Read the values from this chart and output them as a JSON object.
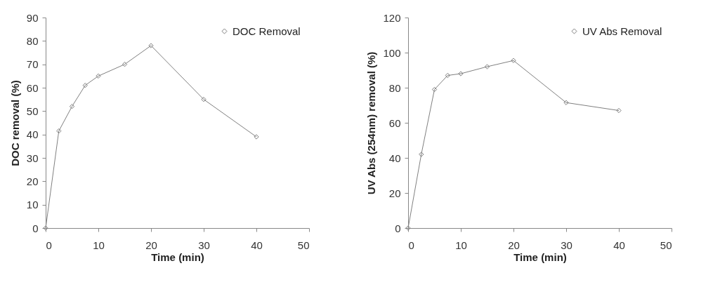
{
  "chart_data": [
    {
      "type": "line",
      "xlabel": "Time (min)",
      "ylabel": "DOC removal (%)",
      "x": [
        0,
        2.5,
        5,
        7.5,
        10,
        15,
        20,
        30,
        40
      ],
      "series": [
        {
          "name": "DOC Removal",
          "color": "#808080",
          "values": [
            0,
            41.5,
            52,
            61,
            65,
            70,
            78,
            55,
            39
          ]
        }
      ],
      "xlim": [
        0,
        50
      ],
      "xticks": [
        0,
        10,
        20,
        30,
        40,
        50
      ],
      "ylim": [
        0,
        90
      ],
      "yticks": [
        0,
        10,
        20,
        30,
        40,
        50,
        60,
        70,
        80,
        90
      ],
      "grid": false,
      "legend": "top right",
      "marker": "diamond",
      "line_style": "solid"
    },
    {
      "type": "line",
      "xlabel": "Time (min)",
      "ylabel": "UV Abs (254nm) removal (%)",
      "x": [
        0,
        2.5,
        5,
        7.5,
        10,
        15,
        20,
        30,
        40
      ],
      "series": [
        {
          "name": "UV Abs Removal",
          "color": "#808080",
          "values": [
            0,
            42,
            79,
            87,
            88,
            92,
            95.5,
            71.5,
            67
          ]
        }
      ],
      "xlim": [
        0,
        50
      ],
      "xticks": [
        0,
        10,
        20,
        30,
        40,
        50
      ],
      "ylim": [
        0,
        120
      ],
      "yticks": [
        0,
        20,
        40,
        60,
        80,
        100,
        120
      ],
      "grid": false,
      "legend": "top right",
      "marker": "diamond",
      "line_style": "solid"
    }
  ]
}
